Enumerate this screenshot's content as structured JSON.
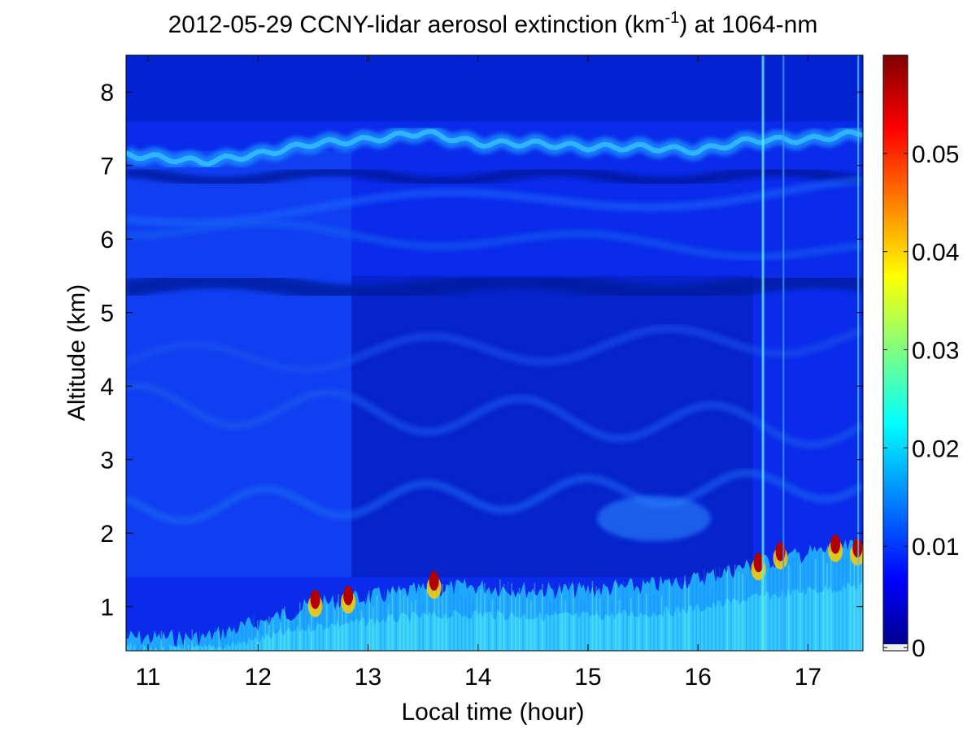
{
  "chart_data": {
    "type": "heatmap",
    "title": {
      "prefix": "2012-05-29 CCNY-lidar aerosol extinction (km",
      "superscript": "-1",
      "suffix": ") at 1064-nm"
    },
    "xlabel": "Local time (hour)",
    "ylabel": "Altitude (km)",
    "xlim": [
      10.8,
      17.5
    ],
    "ylim": [
      0.4,
      8.5
    ],
    "xticks": [
      11,
      12,
      13,
      14,
      15,
      16,
      17
    ],
    "xtick_labels": [
      "11",
      "12",
      "13",
      "14",
      "15",
      "16",
      "17"
    ],
    "yticks": [
      1,
      2,
      3,
      4,
      5,
      6,
      7,
      8
    ],
    "ytick_labels": [
      "1",
      "2",
      "3",
      "4",
      "5",
      "6",
      "7",
      "8"
    ],
    "colormap": "jet",
    "colorbar": {
      "range": [
        0,
        0.06
      ],
      "ticks": [
        0,
        0.01,
        0.02,
        0.03,
        0.04,
        0.05
      ],
      "tick_labels": [
        "0",
        "0.01",
        "0.02",
        "0.03",
        "0.04",
        "0.05"
      ]
    },
    "colors": {
      "jet_stops": [
        "#00008f",
        "#0000ff",
        "#00ffff",
        "#ffff00",
        "#ff0000",
        "#800000"
      ],
      "background": "#ffffff",
      "axis": "#000000"
    },
    "features": {
      "boundary_layer_top": {
        "time": [
          10.8,
          11.5,
          12.0,
          12.5,
          13.0,
          13.5,
          14.0,
          14.5,
          15.0,
          15.5,
          16.0,
          16.5,
          17.0,
          17.5
        ],
        "altitude": [
          0.7,
          0.7,
          0.9,
          1.15,
          1.25,
          1.35,
          1.4,
          1.35,
          1.35,
          1.4,
          1.5,
          1.7,
          1.85,
          1.95
        ]
      },
      "elevated_layer_top": {
        "time": [
          10.8,
          11.5,
          12.0,
          12.5,
          13.0,
          13.5,
          14.0,
          14.5,
          15.0,
          15.5,
          16.0,
          16.5,
          17.0,
          17.5
        ],
        "altitude": [
          7.15,
          7.05,
          7.15,
          7.3,
          7.35,
          7.45,
          7.3,
          7.3,
          7.25,
          7.25,
          7.2,
          7.35,
          7.35,
          7.45
        ]
      },
      "saturated_events": [
        {
          "time": 12.52,
          "altitude": 1.1,
          "value": 0.06
        },
        {
          "time": 12.82,
          "altitude": 1.15,
          "value": 0.055
        },
        {
          "time": 13.6,
          "altitude": 1.35,
          "value": 0.06
        },
        {
          "time": 16.55,
          "altitude": 1.6,
          "value": 0.06
        },
        {
          "time": 16.75,
          "altitude": 1.75,
          "value": 0.06
        },
        {
          "time": 17.25,
          "altitude": 1.85,
          "value": 0.06
        },
        {
          "time": 17.45,
          "altitude": 1.8,
          "value": 0.06
        }
      ]
    }
  }
}
